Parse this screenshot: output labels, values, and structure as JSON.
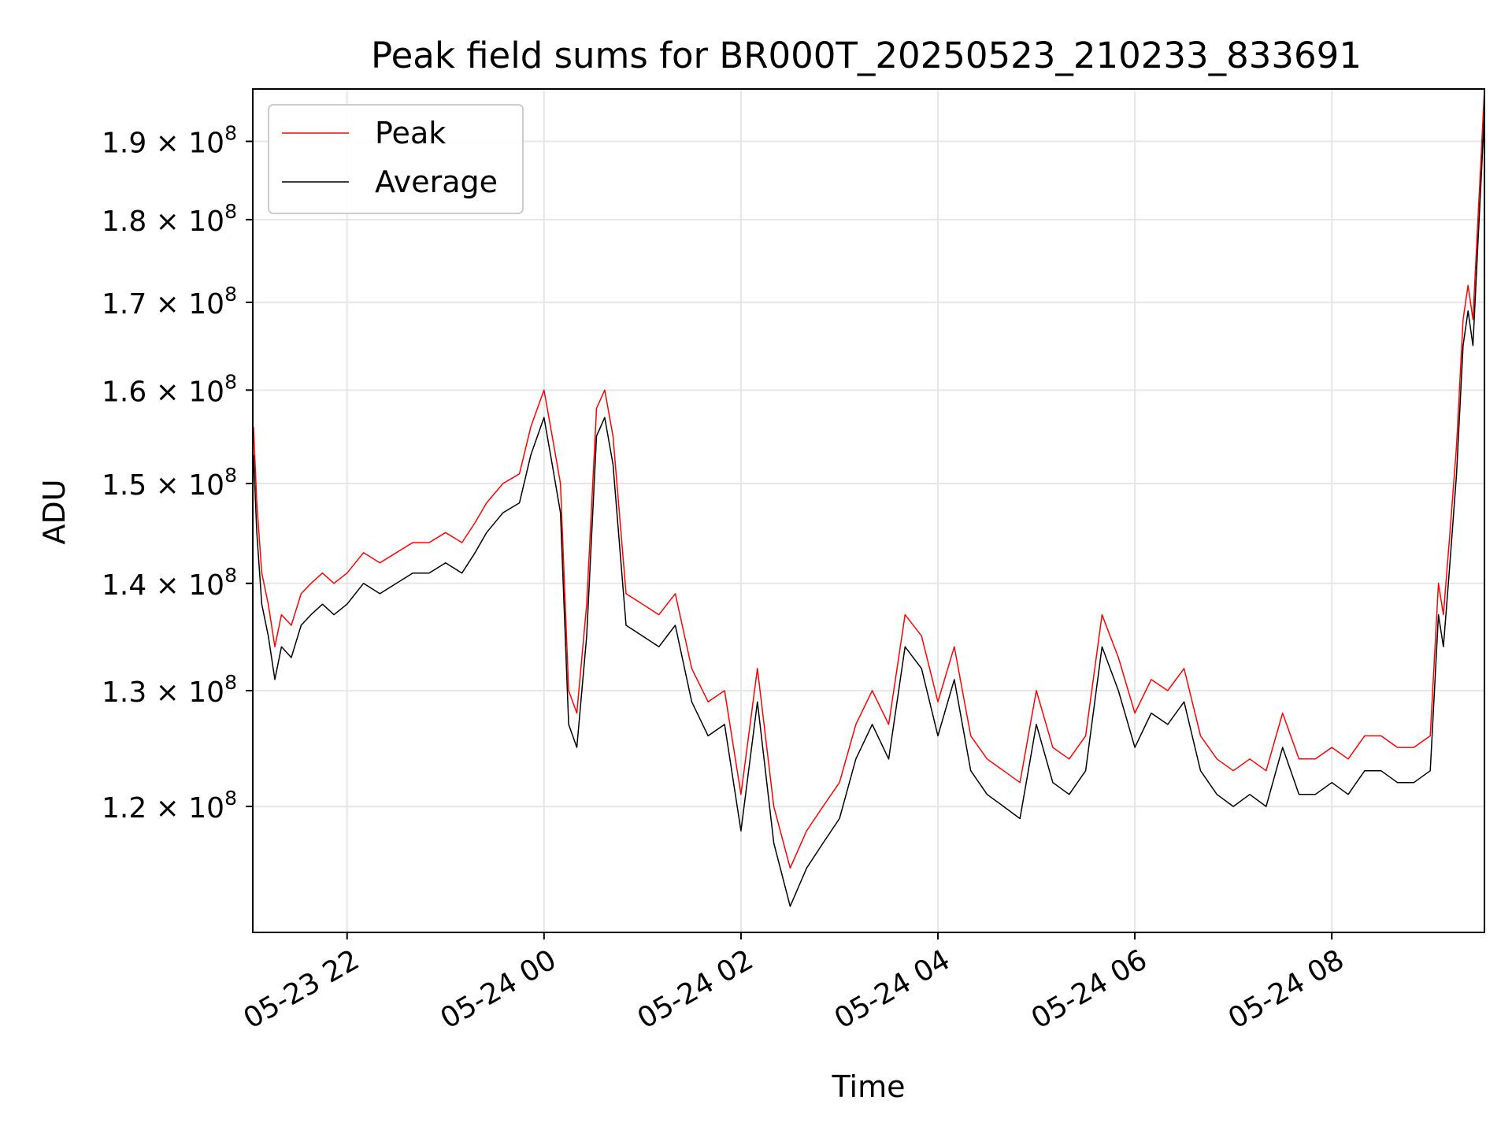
{
  "chart_data": {
    "type": "line",
    "title": "Peak field sums for BR000T_20250523_210233_833691",
    "xlabel": "Time",
    "ylabel": "ADU",
    "y_scale": "log",
    "grid": true,
    "legend_placement": "upper-left",
    "xlim": [
      "2025-05-23T21:02:33",
      "2025-05-24T09:33:00"
    ],
    "ylim": [
      110000000,
      197000000
    ],
    "x_ticks": [
      {
        "t": "2025-05-23T22:00",
        "label": "05-23 22"
      },
      {
        "t": "2025-05-24T00:00",
        "label": "05-24 00"
      },
      {
        "t": "2025-05-24T02:00",
        "label": "05-24 02"
      },
      {
        "t": "2025-05-24T04:00",
        "label": "05-24 04"
      },
      {
        "t": "2025-05-24T06:00",
        "label": "05-24 06"
      },
      {
        "t": "2025-05-24T08:00",
        "label": "05-24 08"
      }
    ],
    "y_ticks": [
      {
        "value": 120000000,
        "mant": "1.2",
        "exp": "8"
      },
      {
        "value": 130000000,
        "mant": "1.3",
        "exp": "8"
      },
      {
        "value": 140000000,
        "mant": "1.4",
        "exp": "8"
      },
      {
        "value": 150000000,
        "mant": "1.5",
        "exp": "8"
      },
      {
        "value": 160000000,
        "mant": "1.6",
        "exp": "8"
      },
      {
        "value": 170000000,
        "mant": "1.7",
        "exp": "8"
      },
      {
        "value": 180000000,
        "mant": "1.8",
        "exp": "8"
      },
      {
        "value": 190000000,
        "mant": "1.9",
        "exp": "8"
      }
    ],
    "series": [
      {
        "name": "Peak",
        "color": "#ff0000",
        "points": [
          [
            "2025-05-23T21:03",
            156000000
          ],
          [
            "2025-05-23T21:05",
            148000000
          ],
          [
            "2025-05-23T21:08",
            141000000
          ],
          [
            "2025-05-23T21:12",
            138000000
          ],
          [
            "2025-05-23T21:16",
            134000000
          ],
          [
            "2025-05-23T21:20",
            137000000
          ],
          [
            "2025-05-23T21:26",
            136000000
          ],
          [
            "2025-05-23T21:32",
            139000000
          ],
          [
            "2025-05-23T21:38",
            140000000
          ],
          [
            "2025-05-23T21:45",
            141000000
          ],
          [
            "2025-05-23T21:52",
            140000000
          ],
          [
            "2025-05-23T22:00",
            141000000
          ],
          [
            "2025-05-23T22:10",
            143000000
          ],
          [
            "2025-05-23T22:20",
            142000000
          ],
          [
            "2025-05-23T22:30",
            143000000
          ],
          [
            "2025-05-23T22:40",
            144000000
          ],
          [
            "2025-05-23T22:50",
            144000000
          ],
          [
            "2025-05-23T23:00",
            145000000
          ],
          [
            "2025-05-23T23:10",
            144000000
          ],
          [
            "2025-05-23T23:18",
            146000000
          ],
          [
            "2025-05-23T23:25",
            148000000
          ],
          [
            "2025-05-23T23:35",
            150000000
          ],
          [
            "2025-05-23T23:45",
            151000000
          ],
          [
            "2025-05-23T23:52",
            156000000
          ],
          [
            "2025-05-24T00:00",
            160000000
          ],
          [
            "2025-05-24T00:05",
            155000000
          ],
          [
            "2025-05-24T00:10",
            150000000
          ],
          [
            "2025-05-24T00:15",
            130000000
          ],
          [
            "2025-05-24T00:20",
            128000000
          ],
          [
            "2025-05-24T00:26",
            138000000
          ],
          [
            "2025-05-24T00:32",
            158000000
          ],
          [
            "2025-05-24T00:37",
            160000000
          ],
          [
            "2025-05-24T00:42",
            155000000
          ],
          [
            "2025-05-24T00:50",
            139000000
          ],
          [
            "2025-05-24T01:00",
            138000000
          ],
          [
            "2025-05-24T01:10",
            137000000
          ],
          [
            "2025-05-24T01:20",
            139000000
          ],
          [
            "2025-05-24T01:30",
            132000000
          ],
          [
            "2025-05-24T01:40",
            129000000
          ],
          [
            "2025-05-24T01:50",
            130000000
          ],
          [
            "2025-05-24T02:00",
            121000000
          ],
          [
            "2025-05-24T02:10",
            132000000
          ],
          [
            "2025-05-24T02:20",
            120000000
          ],
          [
            "2025-05-24T02:30",
            115000000
          ],
          [
            "2025-05-24T02:40",
            118000000
          ],
          [
            "2025-05-24T02:50",
            120000000
          ],
          [
            "2025-05-24T03:00",
            122000000
          ],
          [
            "2025-05-24T03:10",
            127000000
          ],
          [
            "2025-05-24T03:20",
            130000000
          ],
          [
            "2025-05-24T03:30",
            127000000
          ],
          [
            "2025-05-24T03:40",
            137000000
          ],
          [
            "2025-05-24T03:50",
            135000000
          ],
          [
            "2025-05-24T04:00",
            129000000
          ],
          [
            "2025-05-24T04:10",
            134000000
          ],
          [
            "2025-05-24T04:20",
            126000000
          ],
          [
            "2025-05-24T04:30",
            124000000
          ],
          [
            "2025-05-24T04:40",
            123000000
          ],
          [
            "2025-05-24T04:50",
            122000000
          ],
          [
            "2025-05-24T05:00",
            130000000
          ],
          [
            "2025-05-24T05:10",
            125000000
          ],
          [
            "2025-05-24T05:20",
            124000000
          ],
          [
            "2025-05-24T05:30",
            126000000
          ],
          [
            "2025-05-24T05:40",
            137000000
          ],
          [
            "2025-05-24T05:50",
            133000000
          ],
          [
            "2025-05-24T06:00",
            128000000
          ],
          [
            "2025-05-24T06:10",
            131000000
          ],
          [
            "2025-05-24T06:20",
            130000000
          ],
          [
            "2025-05-24T06:30",
            132000000
          ],
          [
            "2025-05-24T06:40",
            126000000
          ],
          [
            "2025-05-24T06:50",
            124000000
          ],
          [
            "2025-05-24T07:00",
            123000000
          ],
          [
            "2025-05-24T07:10",
            124000000
          ],
          [
            "2025-05-24T07:20",
            123000000
          ],
          [
            "2025-05-24T07:30",
            128000000
          ],
          [
            "2025-05-24T07:40",
            124000000
          ],
          [
            "2025-05-24T07:50",
            124000000
          ],
          [
            "2025-05-24T08:00",
            125000000
          ],
          [
            "2025-05-24T08:10",
            124000000
          ],
          [
            "2025-05-24T08:20",
            126000000
          ],
          [
            "2025-05-24T08:30",
            126000000
          ],
          [
            "2025-05-24T08:40",
            125000000
          ],
          [
            "2025-05-24T08:50",
            125000000
          ],
          [
            "2025-05-24T09:00",
            126000000
          ],
          [
            "2025-05-24T09:05",
            140000000
          ],
          [
            "2025-05-24T09:08",
            137000000
          ],
          [
            "2025-05-24T09:12",
            145000000
          ],
          [
            "2025-05-24T09:16",
            154000000
          ],
          [
            "2025-05-24T09:20",
            168000000
          ],
          [
            "2025-05-24T09:23",
            172000000
          ],
          [
            "2025-05-24T09:26",
            168000000
          ],
          [
            "2025-05-24T09:29",
            180000000
          ],
          [
            "2025-05-24T09:31",
            188000000
          ],
          [
            "2025-05-24T09:33",
            197000000
          ]
        ]
      },
      {
        "name": "Average",
        "color": "#000000",
        "points": [
          [
            "2025-05-23T21:03",
            153000000
          ],
          [
            "2025-05-23T21:05",
            145000000
          ],
          [
            "2025-05-23T21:08",
            138000000
          ],
          [
            "2025-05-23T21:12",
            135000000
          ],
          [
            "2025-05-23T21:16",
            131000000
          ],
          [
            "2025-05-23T21:20",
            134000000
          ],
          [
            "2025-05-23T21:26",
            133000000
          ],
          [
            "2025-05-23T21:32",
            136000000
          ],
          [
            "2025-05-23T21:38",
            137000000
          ],
          [
            "2025-05-23T21:45",
            138000000
          ],
          [
            "2025-05-23T21:52",
            137000000
          ],
          [
            "2025-05-23T22:00",
            138000000
          ],
          [
            "2025-05-23T22:10",
            140000000
          ],
          [
            "2025-05-23T22:20",
            139000000
          ],
          [
            "2025-05-23T22:30",
            140000000
          ],
          [
            "2025-05-23T22:40",
            141000000
          ],
          [
            "2025-05-23T22:50",
            141000000
          ],
          [
            "2025-05-23T23:00",
            142000000
          ],
          [
            "2025-05-23T23:10",
            141000000
          ],
          [
            "2025-05-23T23:18",
            143000000
          ],
          [
            "2025-05-23T23:25",
            145000000
          ],
          [
            "2025-05-23T23:35",
            147000000
          ],
          [
            "2025-05-23T23:45",
            148000000
          ],
          [
            "2025-05-23T23:52",
            153000000
          ],
          [
            "2025-05-24T00:00",
            157000000
          ],
          [
            "2025-05-24T00:05",
            152000000
          ],
          [
            "2025-05-24T00:10",
            147000000
          ],
          [
            "2025-05-24T00:15",
            127000000
          ],
          [
            "2025-05-24T00:20",
            125000000
          ],
          [
            "2025-05-24T00:26",
            135000000
          ],
          [
            "2025-05-24T00:32",
            155000000
          ],
          [
            "2025-05-24T00:37",
            157000000
          ],
          [
            "2025-05-24T00:42",
            152000000
          ],
          [
            "2025-05-24T00:50",
            136000000
          ],
          [
            "2025-05-24T01:00",
            135000000
          ],
          [
            "2025-05-24T01:10",
            134000000
          ],
          [
            "2025-05-24T01:20",
            136000000
          ],
          [
            "2025-05-24T01:30",
            129000000
          ],
          [
            "2025-05-24T01:40",
            126000000
          ],
          [
            "2025-05-24T01:50",
            127000000
          ],
          [
            "2025-05-24T02:00",
            118000000
          ],
          [
            "2025-05-24T02:10",
            129000000
          ],
          [
            "2025-05-24T02:20",
            117000000
          ],
          [
            "2025-05-24T02:30",
            112000000
          ],
          [
            "2025-05-24T02:40",
            115000000
          ],
          [
            "2025-05-24T02:50",
            117000000
          ],
          [
            "2025-05-24T03:00",
            119000000
          ],
          [
            "2025-05-24T03:10",
            124000000
          ],
          [
            "2025-05-24T03:20",
            127000000
          ],
          [
            "2025-05-24T03:30",
            124000000
          ],
          [
            "2025-05-24T03:40",
            134000000
          ],
          [
            "2025-05-24T03:50",
            132000000
          ],
          [
            "2025-05-24T04:00",
            126000000
          ],
          [
            "2025-05-24T04:10",
            131000000
          ],
          [
            "2025-05-24T04:20",
            123000000
          ],
          [
            "2025-05-24T04:30",
            121000000
          ],
          [
            "2025-05-24T04:40",
            120000000
          ],
          [
            "2025-05-24T04:50",
            119000000
          ],
          [
            "2025-05-24T05:00",
            127000000
          ],
          [
            "2025-05-24T05:10",
            122000000
          ],
          [
            "2025-05-24T05:20",
            121000000
          ],
          [
            "2025-05-24T05:30",
            123000000
          ],
          [
            "2025-05-24T05:40",
            134000000
          ],
          [
            "2025-05-24T05:50",
            130000000
          ],
          [
            "2025-05-24T06:00",
            125000000
          ],
          [
            "2025-05-24T06:10",
            128000000
          ],
          [
            "2025-05-24T06:20",
            127000000
          ],
          [
            "2025-05-24T06:30",
            129000000
          ],
          [
            "2025-05-24T06:40",
            123000000
          ],
          [
            "2025-05-24T06:50",
            121000000
          ],
          [
            "2025-05-24T07:00",
            120000000
          ],
          [
            "2025-05-24T07:10",
            121000000
          ],
          [
            "2025-05-24T07:20",
            120000000
          ],
          [
            "2025-05-24T07:30",
            125000000
          ],
          [
            "2025-05-24T07:40",
            121000000
          ],
          [
            "2025-05-24T07:50",
            121000000
          ],
          [
            "2025-05-24T08:00",
            122000000
          ],
          [
            "2025-05-24T08:10",
            121000000
          ],
          [
            "2025-05-24T08:20",
            123000000
          ],
          [
            "2025-05-24T08:30",
            123000000
          ],
          [
            "2025-05-24T08:40",
            122000000
          ],
          [
            "2025-05-24T08:50",
            122000000
          ],
          [
            "2025-05-24T09:00",
            123000000
          ],
          [
            "2025-05-24T09:05",
            137000000
          ],
          [
            "2025-05-24T09:08",
            134000000
          ],
          [
            "2025-05-24T09:12",
            142000000
          ],
          [
            "2025-05-24T09:16",
            151000000
          ],
          [
            "2025-05-24T09:20",
            165000000
          ],
          [
            "2025-05-24T09:23",
            169000000
          ],
          [
            "2025-05-24T09:26",
            165000000
          ],
          [
            "2025-05-24T09:29",
            177000000
          ],
          [
            "2025-05-24T09:31",
            185000000
          ],
          [
            "2025-05-24T09:33",
            194000000
          ]
        ]
      }
    ]
  }
}
